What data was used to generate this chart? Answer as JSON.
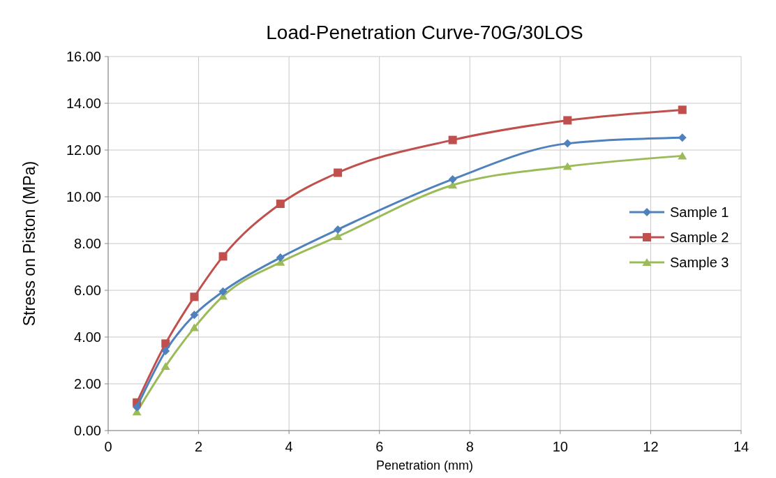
{
  "chart_data": {
    "type": "line",
    "title": "Load-Penetration Curve-70G/30LOS",
    "xlabel": "Penetration (mm)",
    "ylabel": "Stress on Piston (MPa)",
    "x": [
      0.635,
      1.27,
      1.905,
      2.54,
      3.81,
      5.08,
      7.62,
      10.16,
      12.7
    ],
    "series": [
      {
        "name": "Sample 1",
        "color": "#4f81bd",
        "marker": "diamond",
        "values": [
          1.0,
          3.4,
          4.95,
          5.95,
          7.4,
          8.6,
          10.75,
          12.28,
          12.53
        ]
      },
      {
        "name": "Sample 2",
        "color": "#c0504d",
        "marker": "square",
        "values": [
          1.2,
          3.72,
          5.72,
          7.45,
          9.7,
          11.03,
          12.43,
          13.27,
          13.72
        ]
      },
      {
        "name": "Sample 3",
        "color": "#9bbb59",
        "marker": "triangle",
        "values": [
          0.8,
          2.75,
          4.4,
          5.75,
          7.2,
          8.3,
          10.5,
          11.3,
          11.75
        ]
      }
    ],
    "xlim": [
      0,
      14
    ],
    "xticks": [
      0,
      2,
      4,
      6,
      8,
      10,
      12,
      14
    ],
    "ylim": [
      0,
      16
    ],
    "yticks": [
      {
        "value": 0,
        "label": "0.00"
      },
      {
        "value": 2,
        "label": "2.00"
      },
      {
        "value": 4,
        "label": "4.00"
      },
      {
        "value": 6,
        "label": "6.00"
      },
      {
        "value": 8,
        "label": "8.00"
      },
      {
        "value": 10,
        "label": "10.00"
      },
      {
        "value": 12,
        "label": "12.00"
      },
      {
        "value": 14,
        "label": "14.00"
      },
      {
        "value": 16,
        "label": "16.00"
      }
    ],
    "grid": true,
    "legend": "right",
    "line_style": "solid"
  }
}
